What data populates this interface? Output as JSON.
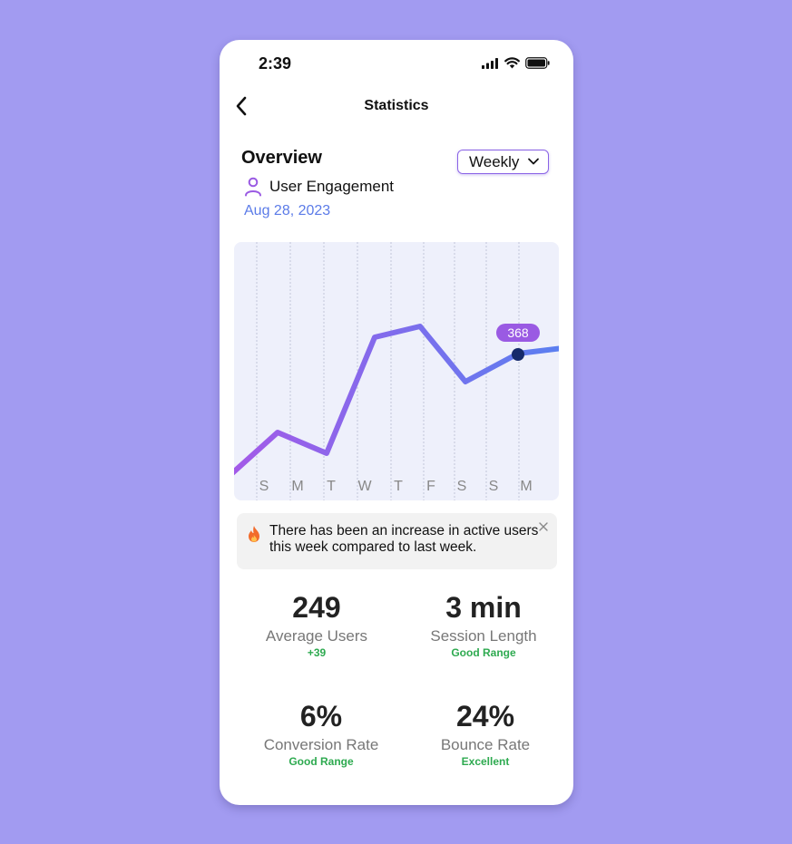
{
  "status_bar": {
    "time": "2:39",
    "icons": [
      "signal-icon",
      "wifi-icon",
      "battery-icon"
    ]
  },
  "nav": {
    "back_icon": "chevron-left-icon",
    "title": "Statistics"
  },
  "overview": {
    "title": "Overview",
    "period_select": {
      "value": "Weekly",
      "icon": "chevron-down-icon"
    },
    "metric": {
      "icon": "user-icon",
      "label": "User Engagement"
    },
    "date": "Aug 28, 2023"
  },
  "chart_data": {
    "type": "line",
    "categories": [
      "S",
      "M",
      "T",
      "W",
      "T",
      "F",
      "S",
      "S",
      "M"
    ],
    "highlight": {
      "label": "368"
    },
    "grid": "vertical-dashed",
    "colors": {
      "line_start": "#a35ae8",
      "line_end": "#5b7ff0",
      "background": "#eef0fb",
      "grid": "#b8bcd0",
      "marker": "#162a6b",
      "badge": "#9a5ae3"
    }
  },
  "notice": {
    "icon": "fire-icon",
    "text": "There has been an increase in active users this week compared to last week.",
    "close_icon": "close-icon"
  },
  "stats": [
    {
      "value": "249",
      "label": "Average Users",
      "note": "+39"
    },
    {
      "value": "3 min",
      "label": "Session Length",
      "note": "Good Range"
    },
    {
      "value": "6%",
      "label": "Conversion Rate",
      "note": "Good Range"
    },
    {
      "value": "24%",
      "label": "Bounce Rate",
      "note": "Excellent"
    }
  ],
  "colors": {
    "page_background": "#a29bf1",
    "accent": "#8a63e6",
    "date_blue": "#5b7be8",
    "good_green": "#2eaa50"
  }
}
